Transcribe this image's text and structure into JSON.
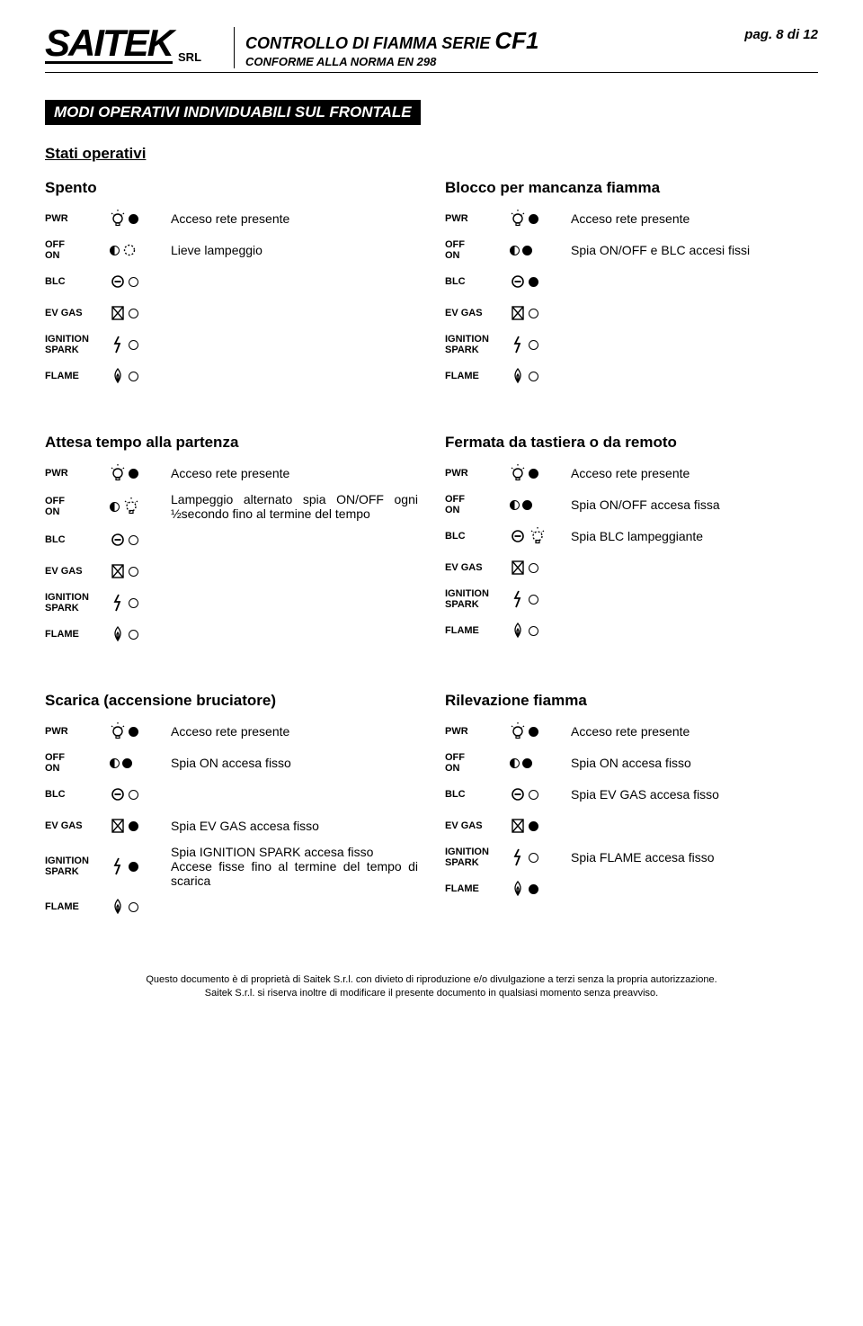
{
  "header": {
    "logo": "SAITEK",
    "logo_srl": "SRL",
    "title_pre": "CONTROLLO DI FIAMMA SERIE ",
    "title_model": "CF1",
    "page": "pag. 8 di 12",
    "subtitle": "CONFORME ALLA NORMA  EN 298"
  },
  "section_title": "MODI OPERATIVI INDIVIDUABILI SUL FRONTALE",
  "stati_operativi": "Stati operativi",
  "labels": {
    "pwr": "PWR",
    "off_on": "OFF\nON",
    "blc": "BLC",
    "ev_gas": "EV GAS",
    "ignition": "IGNITION\nSPARK",
    "flame": "FLAME"
  },
  "blocks": [
    {
      "left": {
        "title": "Spento",
        "rows": [
          {
            "key": "pwr",
            "icon": "bulb",
            "leds": [
              "on"
            ],
            "desc": "Acceso rete presente"
          },
          {
            "key": "off_on",
            "icon": "",
            "leds": [
              "half",
              "off_dash"
            ],
            "desc": "Lieve lampeggio"
          },
          {
            "key": "blc",
            "icon": "minus",
            "leds": [
              "off"
            ],
            "desc": ""
          },
          {
            "key": "ev_gas",
            "icon": "valve",
            "leds": [
              "off"
            ],
            "desc": ""
          },
          {
            "key": "ignition",
            "icon": "spark",
            "leds": [
              "off"
            ],
            "desc": ""
          },
          {
            "key": "flame",
            "icon": "flame",
            "leds": [
              "off"
            ],
            "desc": ""
          }
        ]
      },
      "right": {
        "title": "Blocco per mancanza fiamma",
        "rows": [
          {
            "key": "pwr",
            "icon": "bulb",
            "leds": [
              "on"
            ],
            "desc": "Acceso rete presente"
          },
          {
            "key": "off_on",
            "icon": "",
            "leds": [
              "half",
              "on"
            ],
            "desc": "Spia ON/OFF e BLC accesi fissi"
          },
          {
            "key": "blc",
            "icon": "minus",
            "leds": [
              "on"
            ],
            "desc": ""
          },
          {
            "key": "ev_gas",
            "icon": "valve",
            "leds": [
              "off"
            ],
            "desc": ""
          },
          {
            "key": "ignition",
            "icon": "spark",
            "leds": [
              "off"
            ],
            "desc": ""
          },
          {
            "key": "flame",
            "icon": "flame",
            "leds": [
              "off"
            ],
            "desc": ""
          }
        ]
      }
    },
    {
      "left": {
        "title": "Attesa tempo alla partenza",
        "rows": [
          {
            "key": "pwr",
            "icon": "bulb",
            "leds": [
              "on"
            ],
            "desc": "Acceso rete presente"
          },
          {
            "key": "off_on",
            "icon": "",
            "leds": [
              "half",
              "bulb_dash"
            ],
            "desc": "Lampeggio alternato spia ON/OFF ogni ½secondo fino al termine del tempo"
          },
          {
            "key": "blc",
            "icon": "minus",
            "leds": [
              "off"
            ],
            "desc": ""
          },
          {
            "key": "ev_gas",
            "icon": "valve",
            "leds": [
              "off"
            ],
            "desc": ""
          },
          {
            "key": "ignition",
            "icon": "spark",
            "leds": [
              "off"
            ],
            "desc": ""
          },
          {
            "key": "flame",
            "icon": "flame",
            "leds": [
              "off"
            ],
            "desc": ""
          }
        ]
      },
      "right": {
        "title": "Fermata da tastiera o da remoto",
        "rows": [
          {
            "key": "pwr",
            "icon": "bulb",
            "leds": [
              "on"
            ],
            "desc": "Acceso rete presente"
          },
          {
            "key": "off_on",
            "icon": "",
            "leds": [
              "half",
              "on"
            ],
            "desc": "Spia ON/OFF accesa fissa"
          },
          {
            "key": "blc",
            "icon": "minus",
            "leds": [
              "bulb_dash"
            ],
            "desc": "Spia BLC lampeggiante"
          },
          {
            "key": "ev_gas",
            "icon": "valve",
            "leds": [
              "off"
            ],
            "desc": ""
          },
          {
            "key": "ignition",
            "icon": "spark",
            "leds": [
              "off"
            ],
            "desc": ""
          },
          {
            "key": "flame",
            "icon": "flame",
            "leds": [
              "off"
            ],
            "desc": ""
          }
        ]
      }
    },
    {
      "left": {
        "title": "Scarica (accensione bruciatore)",
        "rows": [
          {
            "key": "pwr",
            "icon": "bulb",
            "leds": [
              "on"
            ],
            "desc": "Acceso rete presente"
          },
          {
            "key": "off_on",
            "icon": "",
            "leds": [
              "half",
              "on"
            ],
            "desc": "Spia ON accesa fisso"
          },
          {
            "key": "blc",
            "icon": "minus",
            "leds": [
              "off"
            ],
            "desc": ""
          },
          {
            "key": "ev_gas",
            "icon": "valve",
            "leds": [
              "on"
            ],
            "desc": "Spia EV GAS accesa fisso"
          },
          {
            "key": "ignition",
            "icon": "spark",
            "leds": [
              "on"
            ],
            "desc": "Spia IGNITION SPARK accesa fisso\nAccese fisse fino al termine del tempo di scarica"
          },
          {
            "key": "flame",
            "icon": "flame",
            "leds": [
              "off"
            ],
            "desc": ""
          }
        ]
      },
      "right": {
        "title": "Rilevazione fiamma",
        "rows": [
          {
            "key": "pwr",
            "icon": "bulb",
            "leds": [
              "on"
            ],
            "desc": "Acceso rete presente"
          },
          {
            "key": "off_on",
            "icon": "",
            "leds": [
              "half",
              "on"
            ],
            "desc": "Spia ON accesa fisso"
          },
          {
            "key": "blc",
            "icon": "minus",
            "leds": [
              "off"
            ],
            "desc": "Spia EV GAS accesa fisso"
          },
          {
            "key": "ev_gas",
            "icon": "valve",
            "leds": [
              "on"
            ],
            "desc": ""
          },
          {
            "key": "ignition",
            "icon": "spark",
            "leds": [
              "off"
            ],
            "desc": "Spia FLAME accesa fisso"
          },
          {
            "key": "flame",
            "icon": "flame",
            "leds": [
              "on"
            ],
            "desc": ""
          }
        ]
      }
    }
  ],
  "footer": {
    "l1": "Questo documento è di proprietà di Saitek S.r.l. con divieto di riproduzione e/o divulgazione a terzi senza la propria autorizzazione.",
    "l2": "Saitek S.r.l. si riserva inoltre di modificare il presente documento in qualsiasi momento senza preavviso."
  }
}
